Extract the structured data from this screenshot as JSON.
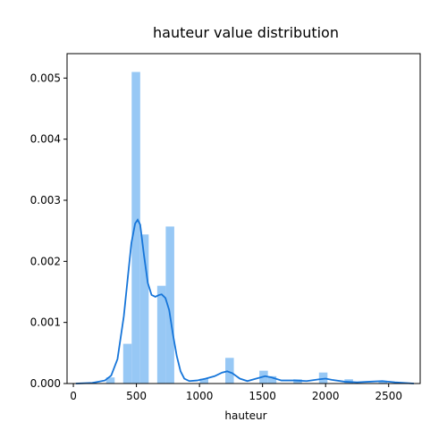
{
  "chart_data": {
    "type": "bar",
    "title": "hauteur value distribution",
    "xlabel": "hauteur",
    "ylabel": "",
    "xlim": [
      -50,
      2750
    ],
    "ylim": [
      0,
      0.0054
    ],
    "xticks": [
      0,
      500,
      1000,
      1500,
      2000,
      2500
    ],
    "xtick_labels": [
      "0",
      "500",
      "1000",
      "1500",
      "2000",
      "2500"
    ],
    "yticks": [
      0,
      0.001,
      0.002,
      0.003,
      0.004,
      0.005
    ],
    "ytick_labels": [
      "0.000",
      "0.001",
      "0.002",
      "0.003",
      "0.004",
      "0.005"
    ],
    "bin_width": 67.5,
    "histogram": [
      {
        "x": 260,
        "y": 0.0001
      },
      {
        "x": 395,
        "y": 0.00065
      },
      {
        "x": 462.5,
        "y": 0.0051
      },
      {
        "x": 530,
        "y": 0.00244
      },
      {
        "x": 665,
        "y": 0.0016
      },
      {
        "x": 732.5,
        "y": 0.00257
      },
      {
        "x": 1002.5,
        "y": 8e-05
      },
      {
        "x": 1205,
        "y": 0.00042
      },
      {
        "x": 1475,
        "y": 0.00021
      },
      {
        "x": 1542.5,
        "y": 0.00012
      },
      {
        "x": 1745,
        "y": 7e-05
      },
      {
        "x": 1947.5,
        "y": 0.00018
      },
      {
        "x": 2150,
        "y": 7e-05
      },
      {
        "x": 2420,
        "y": 4e-05
      }
    ],
    "kde": [
      [
        20,
        0
      ],
      [
        150,
        1e-05
      ],
      [
        250,
        5e-05
      ],
      [
        300,
        0.00013
      ],
      [
        350,
        0.0004
      ],
      [
        400,
        0.0011
      ],
      [
        430,
        0.0017
      ],
      [
        460,
        0.0023
      ],
      [
        490,
        0.00262
      ],
      [
        510,
        0.00268
      ],
      [
        530,
        0.0026
      ],
      [
        560,
        0.0021
      ],
      [
        590,
        0.00165
      ],
      [
        620,
        0.00145
      ],
      [
        650,
        0.00142
      ],
      [
        680,
        0.00145
      ],
      [
        700,
        0.00146
      ],
      [
        730,
        0.0014
      ],
      [
        760,
        0.0012
      ],
      [
        790,
        0.0008
      ],
      [
        820,
        0.00045
      ],
      [
        850,
        0.0002
      ],
      [
        880,
        8e-05
      ],
      [
        920,
        4e-05
      ],
      [
        980,
        5e-05
      ],
      [
        1050,
        8e-05
      ],
      [
        1120,
        0.00012
      ],
      [
        1180,
        0.00018
      ],
      [
        1220,
        0.0002
      ],
      [
        1260,
        0.00017
      ],
      [
        1320,
        8e-05
      ],
      [
        1380,
        4e-05
      ],
      [
        1450,
        8e-05
      ],
      [
        1520,
        0.00012
      ],
      [
        1570,
        0.0001
      ],
      [
        1650,
        5e-05
      ],
      [
        1750,
        5e-05
      ],
      [
        1850,
        4e-05
      ],
      [
        1950,
        7e-05
      ],
      [
        2000,
        8e-05
      ],
      [
        2050,
        6e-05
      ],
      [
        2150,
        3e-05
      ],
      [
        2250,
        2e-05
      ],
      [
        2350,
        3e-05
      ],
      [
        2450,
        4e-05
      ],
      [
        2550,
        2e-05
      ],
      [
        2700,
        0
      ]
    ],
    "colors": {
      "bar": "#97C8F5",
      "kde": "#1675D9",
      "axis": "#000000"
    }
  }
}
